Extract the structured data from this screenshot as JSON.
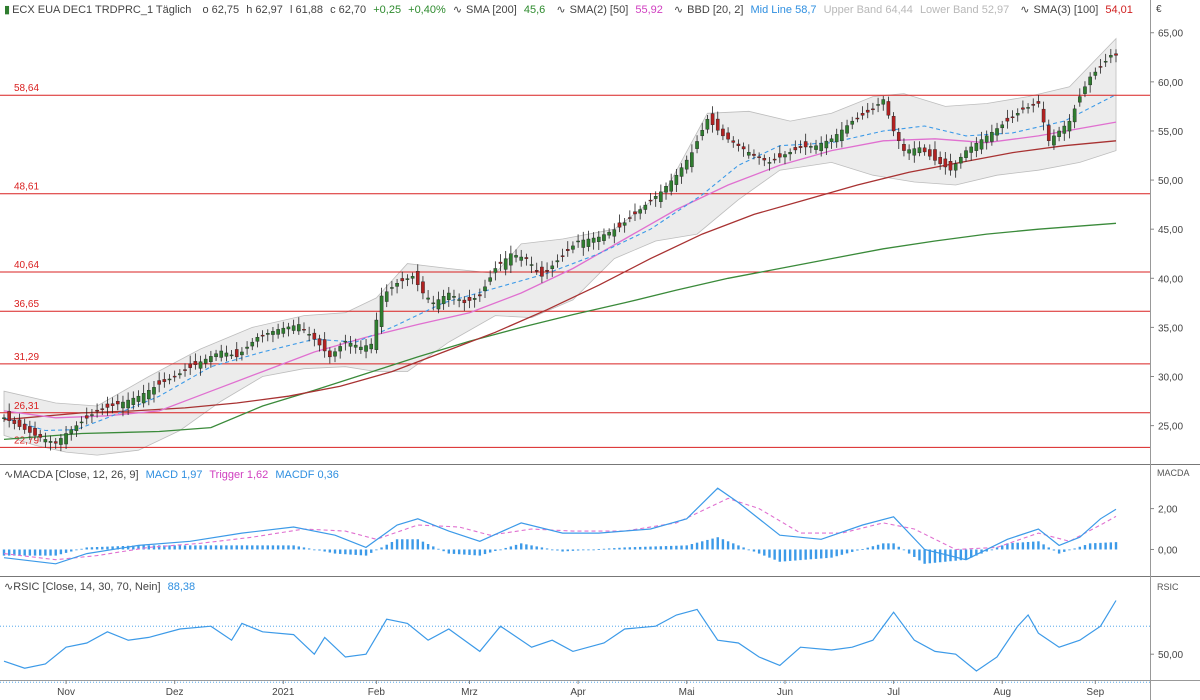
{
  "colors": {
    "price_up": "#2f7d2f",
    "price_down": "#b22222",
    "sma200": "#3a8a3a",
    "sma50": "#e070d0",
    "sma100": "#a83232",
    "midline": "#3c9ae8",
    "band_fill": "#e6e6e6",
    "support_line": "#d92020",
    "macd": "#3c9ae8",
    "trigger": "#e070d0",
    "macdf": "#3c9ae8",
    "rsi": "#3c9ae8"
  },
  "header": {
    "instrument": "ECX EUA DEC1 TRDPRC_1 Täglich",
    "open": "o 62,75",
    "high": "h 62,97",
    "low": "l 61,88",
    "close": "c 62,70",
    "change": "+0,25",
    "change_pct": "+0,40%",
    "sma200_label": "SMA [200]",
    "sma200_value": "45,6",
    "sma50_label": "SMA(2) [50]",
    "sma50_value": "55,92",
    "bbd_label": "BBD [20, 2]",
    "midline_text": "Mid Line 58,7",
    "upper_band_text": "Upper Band 64,44",
    "lower_band_text": "Lower Band 52,97",
    "sma100_label": "SMA(3) [100]",
    "sma100_value": "54,01"
  },
  "macd_header": {
    "label": "MACDA [Close, 12, 26, 9]",
    "macd_text": "MACD 1,97",
    "trigger_text": "Trigger 1,62",
    "macdf_text": "MACDF 0,36"
  },
  "rsi_header": {
    "label": "RSIC [Close, 14, 30, 70, Nein]",
    "value_text": "88,38"
  },
  "axis": {
    "currency": "€",
    "price_ticks": [
      "65,00",
      "60,00",
      "55,00",
      "50,00",
      "45,00",
      "40,00",
      "35,00",
      "30,00",
      "25,00"
    ],
    "macd_panel_label": "MACDA",
    "macd_ticks": [
      "2,00",
      "0,00"
    ],
    "rsi_panel_label": "RSIC",
    "rsi_ticks": [
      "50,00"
    ],
    "months": [
      "Nov",
      "Dez",
      "2021",
      "Feb",
      "Mrz",
      "Apr",
      "Mai",
      "Jun",
      "Jul",
      "Aug",
      "Sep"
    ]
  },
  "chart_data": {
    "type": "candlestick",
    "price_axis": {
      "min": 21.5,
      "max": 66.5,
      "scale": "linear",
      "grid": false,
      "side": "right"
    },
    "x_range": [
      0,
      215
    ],
    "month_positions": [
      12,
      33,
      54,
      72,
      90,
      111,
      132,
      151,
      172,
      193,
      211
    ],
    "support_levels": [
      {
        "label": "58,64",
        "value": 58.64
      },
      {
        "label": "48,61",
        "value": 48.61
      },
      {
        "label": "40,64",
        "value": 40.64
      },
      {
        "label": "36,65",
        "value": 36.65
      },
      {
        "label": "31,29",
        "value": 31.29
      },
      {
        "label": "26,31",
        "value": 26.31
      },
      {
        "label": "22,79",
        "value": 22.79
      }
    ],
    "close_path": [
      [
        0,
        25.8
      ],
      [
        6,
        24.0
      ],
      [
        10,
        23.2
      ],
      [
        12,
        24.2
      ],
      [
        14,
        25.0
      ],
      [
        18,
        26.5
      ],
      [
        22,
        27.2
      ],
      [
        26,
        28.0
      ],
      [
        30,
        29.2
      ],
      [
        34,
        30.3
      ],
      [
        38,
        31.5
      ],
      [
        42,
        32.6
      ],
      [
        45,
        32.0
      ],
      [
        49,
        34.0
      ],
      [
        53,
        34.8
      ],
      [
        57,
        35.3
      ],
      [
        60,
        33.8
      ],
      [
        63,
        32.0
      ],
      [
        66,
        33.6
      ],
      [
        69,
        33.0
      ],
      [
        71,
        33.3
      ],
      [
        73,
        38.2
      ],
      [
        76,
        39.5
      ],
      [
        79,
        40.2
      ],
      [
        81,
        38.5
      ],
      [
        83,
        37.5
      ],
      [
        86,
        38.5
      ],
      [
        89,
        37.5
      ],
      [
        92,
        38.2
      ],
      [
        95,
        41.0
      ],
      [
        98,
        42.5
      ],
      [
        101,
        42.0
      ],
      [
        104,
        40.2
      ],
      [
        107,
        41.8
      ],
      [
        111,
        43.8
      ],
      [
        115,
        44.2
      ],
      [
        119,
        45.2
      ],
      [
        123,
        47.0
      ],
      [
        127,
        48.8
      ],
      [
        130,
        50.5
      ],
      [
        133,
        52.8
      ],
      [
        136,
        56.2
      ],
      [
        139,
        54.5
      ],
      [
        142,
        53.5
      ],
      [
        145,
        52.5
      ],
      [
        148,
        51.8
      ],
      [
        151,
        52.6
      ],
      [
        154,
        53.3
      ],
      [
        157,
        53.5
      ],
      [
        160,
        54.2
      ],
      [
        164,
        56.0
      ],
      [
        168,
        57.2
      ],
      [
        170,
        58.2
      ],
      [
        172,
        55.0
      ],
      [
        174,
        53.0
      ],
      [
        177,
        53.3
      ],
      [
        180,
        52.0
      ],
      [
        183,
        51.0
      ],
      [
        186,
        53.0
      ],
      [
        190,
        54.5
      ],
      [
        194,
        56.0
      ],
      [
        197,
        57.2
      ],
      [
        200,
        57.8
      ],
      [
        202,
        54.0
      ],
      [
        204,
        55.0
      ],
      [
        206,
        56.0
      ],
      [
        208,
        58.5
      ],
      [
        210,
        60.5
      ],
      [
        212,
        61.5
      ],
      [
        214,
        62.7
      ]
    ],
    "sma200": [
      [
        0,
        23.6
      ],
      [
        15,
        24.2
      ],
      [
        30,
        24.4
      ],
      [
        40,
        24.8
      ],
      [
        50,
        27.0
      ],
      [
        60,
        28.6
      ],
      [
        70,
        30.3
      ],
      [
        80,
        32.0
      ],
      [
        90,
        33.6
      ],
      [
        100,
        35.0
      ],
      [
        110,
        36.3
      ],
      [
        120,
        37.5
      ],
      [
        130,
        38.8
      ],
      [
        140,
        40.0
      ],
      [
        150,
        41.0
      ],
      [
        160,
        42.0
      ],
      [
        170,
        43.0
      ],
      [
        180,
        43.8
      ],
      [
        190,
        44.5
      ],
      [
        200,
        45.0
      ],
      [
        215,
        45.6
      ]
    ],
    "sma100": [
      [
        0,
        25.6
      ],
      [
        15,
        26.3
      ],
      [
        25,
        26.5
      ],
      [
        35,
        26.8
      ],
      [
        45,
        27.3
      ],
      [
        55,
        28.0
      ],
      [
        65,
        29.0
      ],
      [
        75,
        30.5
      ],
      [
        85,
        32.5
      ],
      [
        95,
        34.5
      ],
      [
        105,
        36.8
      ],
      [
        115,
        39.3
      ],
      [
        125,
        42.0
      ],
      [
        135,
        44.5
      ],
      [
        145,
        46.5
      ],
      [
        155,
        48.0
      ],
      [
        165,
        49.5
      ],
      [
        175,
        50.8
      ],
      [
        185,
        51.8
      ],
      [
        195,
        52.8
      ],
      [
        205,
        53.5
      ],
      [
        215,
        54.0
      ]
    ],
    "sma50": [
      [
        0,
        26.5
      ],
      [
        10,
        25.8
      ],
      [
        20,
        26.0
      ],
      [
        30,
        26.5
      ],
      [
        40,
        28.5
      ],
      [
        50,
        30.5
      ],
      [
        60,
        32.5
      ],
      [
        70,
        34.0
      ],
      [
        80,
        35.3
      ],
      [
        90,
        36.5
      ],
      [
        100,
        38.5
      ],
      [
        110,
        41.0
      ],
      [
        120,
        44.0
      ],
      [
        130,
        47.0
      ],
      [
        140,
        49.5
      ],
      [
        150,
        51.5
      ],
      [
        160,
        53.0
      ],
      [
        170,
        54.0
      ],
      [
        180,
        54.2
      ],
      [
        190,
        53.8
      ],
      [
        200,
        54.5
      ],
      [
        215,
        55.9
      ]
    ],
    "bb_mid": [
      [
        0,
        25.8
      ],
      [
        8,
        24.5
      ],
      [
        14,
        24.6
      ],
      [
        20,
        25.8
      ],
      [
        30,
        28.0
      ],
      [
        40,
        31.0
      ],
      [
        50,
        32.5
      ],
      [
        60,
        33.8
      ],
      [
        68,
        33.5
      ],
      [
        75,
        35.0
      ],
      [
        85,
        37.5
      ],
      [
        95,
        39.0
      ],
      [
        105,
        40.5
      ],
      [
        115,
        42.5
      ],
      [
        125,
        45.0
      ],
      [
        135,
        48.5
      ],
      [
        142,
        51.5
      ],
      [
        150,
        53.5
      ],
      [
        160,
        53.8
      ],
      [
        170,
        55.0
      ],
      [
        178,
        55.5
      ],
      [
        186,
        54.5
      ],
      [
        195,
        54.8
      ],
      [
        205,
        56.0
      ],
      [
        215,
        58.7
      ]
    ],
    "bb_upper": [
      [
        0,
        28.5
      ],
      [
        10,
        27.3
      ],
      [
        18,
        27.0
      ],
      [
        28,
        30.0
      ],
      [
        38,
        32.8
      ],
      [
        48,
        35.0
      ],
      [
        58,
        36.2
      ],
      [
        66,
        36.5
      ],
      [
        72,
        38.0
      ],
      [
        78,
        41.5
      ],
      [
        86,
        41.0
      ],
      [
        95,
        40.5
      ],
      [
        100,
        43.5
      ],
      [
        108,
        44.0
      ],
      [
        118,
        45.0
      ],
      [
        128,
        49.0
      ],
      [
        136,
        56.8
      ],
      [
        144,
        57.0
      ],
      [
        152,
        56.0
      ],
      [
        160,
        56.8
      ],
      [
        168,
        58.5
      ],
      [
        174,
        58.8
      ],
      [
        182,
        57.5
      ],
      [
        190,
        57.8
      ],
      [
        198,
        58.5
      ],
      [
        206,
        59.5
      ],
      [
        215,
        64.4
      ]
    ],
    "bb_lower": [
      [
        0,
        24.0
      ],
      [
        6,
        23.0
      ],
      [
        12,
        22.3
      ],
      [
        18,
        22.0
      ],
      [
        26,
        22.5
      ],
      [
        34,
        24.5
      ],
      [
        42,
        27.5
      ],
      [
        50,
        30.0
      ],
      [
        58,
        30.8
      ],
      [
        66,
        31.0
      ],
      [
        72,
        30.5
      ],
      [
        78,
        30.5
      ],
      [
        86,
        33.5
      ],
      [
        95,
        36.2
      ],
      [
        102,
        36.0
      ],
      [
        110,
        37.8
      ],
      [
        118,
        42.0
      ],
      [
        126,
        43.8
      ],
      [
        134,
        44.5
      ],
      [
        142,
        48.0
      ],
      [
        150,
        51.0
      ],
      [
        160,
        51.8
      ],
      [
        168,
        50.5
      ],
      [
        176,
        49.8
      ],
      [
        184,
        49.5
      ],
      [
        192,
        50.5
      ],
      [
        200,
        51.0
      ],
      [
        208,
        51.8
      ],
      [
        215,
        53.0
      ]
    ],
    "macd": {
      "axis": {
        "min": -1.2,
        "max": 3.4
      },
      "macd_line": [
        [
          0,
          -0.4
        ],
        [
          10,
          -0.7
        ],
        [
          16,
          -0.2
        ],
        [
          26,
          0.2
        ],
        [
          36,
          0.4
        ],
        [
          46,
          0.8
        ],
        [
          56,
          1.1
        ],
        [
          64,
          0.7
        ],
        [
          70,
          0.1
        ],
        [
          76,
          1.2
        ],
        [
          80,
          1.5
        ],
        [
          86,
          0.9
        ],
        [
          92,
          0.4
        ],
        [
          100,
          1.3
        ],
        [
          108,
          0.8
        ],
        [
          115,
          0.8
        ],
        [
          125,
          1.0
        ],
        [
          132,
          1.5
        ],
        [
          138,
          3.0
        ],
        [
          142,
          2.3
        ],
        [
          150,
          0.7
        ],
        [
          158,
          0.5
        ],
        [
          166,
          1.2
        ],
        [
          172,
          1.6
        ],
        [
          178,
          0.0
        ],
        [
          186,
          -0.5
        ],
        [
          194,
          0.5
        ],
        [
          200,
          1.0
        ],
        [
          204,
          0.2
        ],
        [
          208,
          0.6
        ],
        [
          212,
          1.5
        ],
        [
          215,
          1.97
        ]
      ],
      "trigger_line": [
        [
          0,
          -0.2
        ],
        [
          10,
          -0.5
        ],
        [
          18,
          -0.3
        ],
        [
          28,
          0.1
        ],
        [
          38,
          0.3
        ],
        [
          48,
          0.6
        ],
        [
          58,
          1.0
        ],
        [
          66,
          0.9
        ],
        [
          72,
          0.5
        ],
        [
          80,
          1.2
        ],
        [
          88,
          1.1
        ],
        [
          94,
          0.7
        ],
        [
          102,
          1.0
        ],
        [
          110,
          0.9
        ],
        [
          120,
          0.9
        ],
        [
          130,
          1.3
        ],
        [
          140,
          2.5
        ],
        [
          146,
          2.0
        ],
        [
          154,
          0.8
        ],
        [
          162,
          0.8
        ],
        [
          170,
          1.3
        ],
        [
          176,
          1.0
        ],
        [
          184,
          0.0
        ],
        [
          192,
          0.1
        ],
        [
          200,
          0.8
        ],
        [
          206,
          0.4
        ],
        [
          212,
          1.2
        ],
        [
          215,
          1.62
        ]
      ],
      "hist_peaks": [
        [
          0,
          -0.3
        ],
        [
          10,
          -0.3
        ],
        [
          16,
          0.1
        ],
        [
          26,
          0.2
        ],
        [
          40,
          0.2
        ],
        [
          56,
          0.2
        ],
        [
          64,
          -0.2
        ],
        [
          70,
          -0.3
        ],
        [
          76,
          0.5
        ],
        [
          80,
          0.5
        ],
        [
          86,
          -0.2
        ],
        [
          92,
          -0.3
        ],
        [
          100,
          0.3
        ],
        [
          108,
          -0.1
        ],
        [
          120,
          0.1
        ],
        [
          132,
          0.2
        ],
        [
          138,
          0.6
        ],
        [
          142,
          0.2
        ],
        [
          150,
          -0.6
        ],
        [
          160,
          -0.4
        ],
        [
          170,
          0.3
        ],
        [
          172,
          0.3
        ],
        [
          178,
          -0.7
        ],
        [
          186,
          -0.5
        ],
        [
          194,
          0.3
        ],
        [
          200,
          0.4
        ],
        [
          204,
          -0.2
        ],
        [
          210,
          0.3
        ],
        [
          215,
          0.36
        ]
      ]
    },
    "rsi": {
      "axis": {
        "min": 33,
        "max": 93
      },
      "levels": [
        30,
        70
      ],
      "rsi_line": [
        [
          0,
          45
        ],
        [
          4,
          40
        ],
        [
          8,
          43
        ],
        [
          12,
          55
        ],
        [
          16,
          58
        ],
        [
          20,
          66
        ],
        [
          24,
          60
        ],
        [
          28,
          62
        ],
        [
          34,
          68
        ],
        [
          40,
          70
        ],
        [
          44,
          60
        ],
        [
          46,
          72
        ],
        [
          50,
          66
        ],
        [
          56,
          64
        ],
        [
          60,
          50
        ],
        [
          62,
          62
        ],
        [
          66,
          48
        ],
        [
          70,
          50
        ],
        [
          74,
          75
        ],
        [
          78,
          72
        ],
        [
          82,
          60
        ],
        [
          86,
          68
        ],
        [
          92,
          52
        ],
        [
          96,
          70
        ],
        [
          102,
          55
        ],
        [
          106,
          60
        ],
        [
          110,
          52
        ],
        [
          116,
          58
        ],
        [
          120,
          68
        ],
        [
          126,
          70
        ],
        [
          130,
          78
        ],
        [
          134,
          82
        ],
        [
          138,
          60
        ],
        [
          142,
          58
        ],
        [
          146,
          48
        ],
        [
          150,
          42
        ],
        [
          154,
          55
        ],
        [
          160,
          53
        ],
        [
          164,
          55
        ],
        [
          168,
          60
        ],
        [
          172,
          80
        ],
        [
          176,
          60
        ],
        [
          180,
          52
        ],
        [
          184,
          50
        ],
        [
          188,
          38
        ],
        [
          192,
          48
        ],
        [
          196,
          70
        ],
        [
          198,
          78
        ],
        [
          200,
          65
        ],
        [
          204,
          55
        ],
        [
          208,
          60
        ],
        [
          212,
          70
        ],
        [
          215,
          88.38
        ]
      ]
    }
  }
}
